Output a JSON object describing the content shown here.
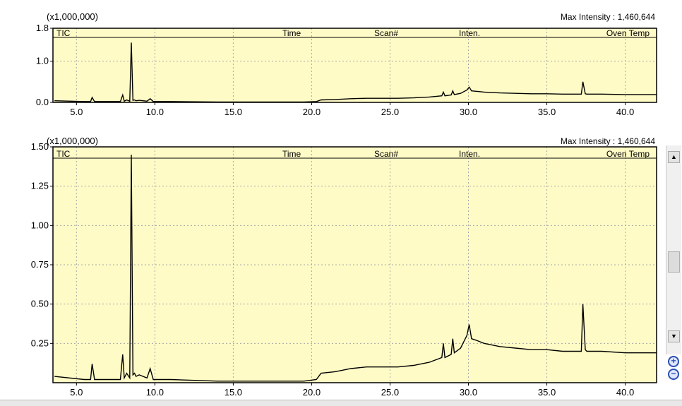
{
  "chart_data": [
    {
      "type": "line",
      "panel": "overview",
      "multiplier_label": "(x1,000,000)",
      "max_intensity_label": "Max Intensity : 1,460,644",
      "header_labels": [
        "TIC",
        "Time",
        "Scan#",
        "Inten.",
        "Oven Temp"
      ],
      "xlim": [
        3.5,
        42
      ],
      "ylim": [
        0,
        1.8
      ],
      "x_ticks": [
        "5.0",
        "10.0",
        "15.0",
        "20.0",
        "25.0",
        "30.0",
        "35.0",
        "40.0"
      ],
      "y_ticks": [
        "0.0",
        "1.0",
        "1.8"
      ],
      "grid": true,
      "background": "#fffbc6",
      "series": [
        {
          "color": "#000000",
          "x": [
            3.6,
            5.5,
            5.9,
            6.0,
            6.15,
            7.8,
            7.95,
            8.05,
            8.2,
            8.4,
            8.5,
            8.6,
            8.7,
            8.8,
            9.0,
            9.5,
            9.7,
            9.9,
            11.0,
            14.0,
            17.0,
            19.5,
            20.3,
            20.6,
            21.5,
            22.5,
            23.5,
            24.5,
            25.5,
            26.5,
            27.5,
            28.3,
            28.4,
            28.5,
            28.9,
            29.0,
            29.1,
            29.5,
            29.9,
            30.05,
            30.2,
            30.5,
            31.0,
            32.0,
            33.0,
            34.0,
            35.0,
            36.0,
            37.2,
            37.3,
            37.45,
            37.55,
            38.5,
            40.0,
            42.0
          ],
          "y": [
            0.04,
            0.02,
            0.02,
            0.12,
            0.02,
            0.02,
            0.18,
            0.03,
            0.06,
            0.03,
            1.45,
            0.05,
            0.06,
            0.04,
            0.05,
            0.03,
            0.09,
            0.02,
            0.02,
            0.01,
            0.01,
            0.01,
            0.02,
            0.06,
            0.07,
            0.09,
            0.1,
            0.1,
            0.1,
            0.11,
            0.13,
            0.16,
            0.25,
            0.16,
            0.18,
            0.28,
            0.19,
            0.22,
            0.3,
            0.37,
            0.28,
            0.27,
            0.25,
            0.23,
            0.22,
            0.21,
            0.21,
            0.2,
            0.2,
            0.5,
            0.21,
            0.2,
            0.2,
            0.19,
            0.19
          ]
        }
      ]
    },
    {
      "type": "line",
      "panel": "detail",
      "multiplier_label": "(x1,000,000)",
      "max_intensity_label": "Max Intensity : 1,460,644",
      "header_labels": [
        "TIC",
        "Time",
        "Scan#",
        "Inten.",
        "Oven Temp"
      ],
      "xlim": [
        3.5,
        42
      ],
      "ylim": [
        0,
        1.5
      ],
      "x_ticks": [
        "5.0",
        "10.0",
        "15.0",
        "20.0",
        "25.0",
        "30.0",
        "35.0",
        "40.0"
      ],
      "y_ticks": [
        "0.25",
        "0.50",
        "0.75",
        "1.00",
        "1.25",
        "1.50"
      ],
      "grid": true,
      "background": "#fffbc6",
      "series": [
        {
          "color": "#000000",
          "x": [
            3.6,
            5.5,
            5.9,
            6.0,
            6.15,
            7.8,
            7.95,
            8.05,
            8.2,
            8.4,
            8.5,
            8.6,
            8.7,
            8.8,
            9.0,
            9.5,
            9.7,
            9.9,
            11.0,
            14.0,
            17.0,
            19.5,
            20.3,
            20.6,
            21.5,
            22.5,
            23.5,
            24.5,
            25.5,
            26.5,
            27.5,
            28.3,
            28.4,
            28.5,
            28.9,
            29.0,
            29.1,
            29.5,
            29.9,
            30.05,
            30.2,
            30.5,
            31.0,
            32.0,
            33.0,
            34.0,
            35.0,
            36.0,
            37.2,
            37.3,
            37.45,
            37.55,
            38.5,
            40.0,
            42.0
          ],
          "y": [
            0.04,
            0.02,
            0.02,
            0.12,
            0.02,
            0.02,
            0.18,
            0.03,
            0.06,
            0.03,
            1.45,
            0.05,
            0.06,
            0.04,
            0.05,
            0.03,
            0.09,
            0.02,
            0.02,
            0.01,
            0.01,
            0.01,
            0.02,
            0.06,
            0.07,
            0.09,
            0.1,
            0.1,
            0.1,
            0.11,
            0.13,
            0.16,
            0.25,
            0.16,
            0.18,
            0.28,
            0.19,
            0.22,
            0.3,
            0.37,
            0.28,
            0.27,
            0.25,
            0.23,
            0.22,
            0.21,
            0.21,
            0.2,
            0.2,
            0.5,
            0.21,
            0.2,
            0.2,
            0.19,
            0.19
          ]
        }
      ]
    }
  ],
  "ui": {
    "scroll_up_icon": "▲",
    "scroll_down_icon": "▼",
    "zoom_in_icon": "+",
    "zoom_out_icon": "−"
  }
}
